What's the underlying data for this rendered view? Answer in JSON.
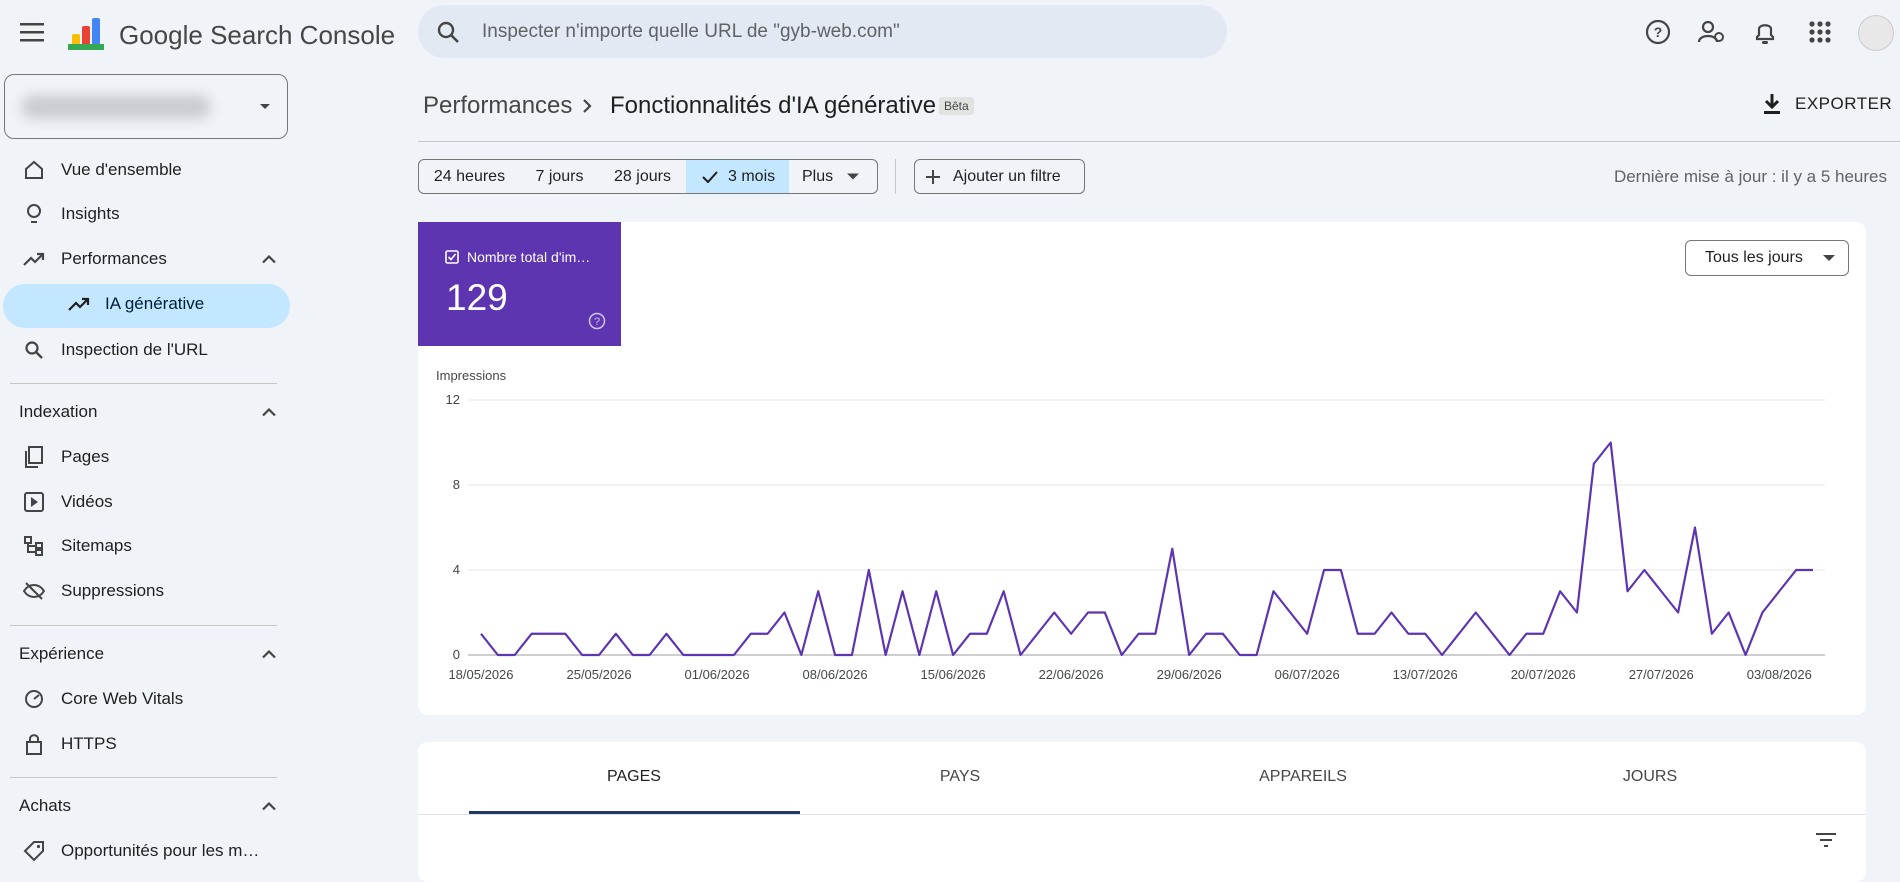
{
  "header": {
    "product": "Google Search Console",
    "search_placeholder": "Inspecter n'importe quelle URL de \"gyb-web.com\""
  },
  "nav": {
    "items": [
      "Vue d'ensemble",
      "Insights",
      "Performances",
      "IA générative",
      "Inspection de l'URL"
    ],
    "sections": [
      {
        "title": "Indexation",
        "items": [
          "Pages",
          "Vidéos",
          "Sitemaps",
          "Suppressions"
        ]
      },
      {
        "title": "Expérience",
        "items": [
          "Core Web Vitals",
          "HTTPS"
        ]
      },
      {
        "title": "Achats",
        "items": [
          "Opportunités pour les m…"
        ]
      }
    ]
  },
  "breadcrumb": {
    "parent": "Performances",
    "current": "Fonctionnalités d'IA générative",
    "badge": "Bêta"
  },
  "export": "EXPORTER",
  "filters": {
    "ranges": [
      "24 heures",
      "7 jours",
      "28 jours",
      "3 mois",
      "Plus"
    ],
    "add_filter": "Ajouter un filtre",
    "last_update": "Dernière mise à jour : il y a 5 heures"
  },
  "metric_card": {
    "label": "Nombre total d'im…",
    "value": 129
  },
  "granularity": "Tous les jours",
  "chart_data": {
    "type": "line",
    "y_label": "Impressions",
    "color": "#5e35b1",
    "grid": true,
    "categories": [
      "18/05/2026",
      null,
      null,
      null,
      null,
      null,
      null,
      "25/05/2026",
      null,
      null,
      null,
      null,
      null,
      null,
      "01/06/2026",
      null,
      null,
      null,
      null,
      null,
      null,
      "08/06/2026",
      null,
      null,
      null,
      null,
      null,
      null,
      "15/06/2026",
      null,
      null,
      null,
      null,
      null,
      null,
      "22/06/2026",
      null,
      null,
      null,
      null,
      null,
      null,
      "29/06/2026",
      null,
      null,
      null,
      null,
      null,
      null,
      "06/07/2026",
      null,
      null,
      null,
      null,
      null,
      null,
      "13/07/2026",
      null,
      null,
      null,
      null,
      null,
      null,
      "20/07/2026",
      null,
      null,
      null,
      null,
      null,
      null,
      "27/07/2026",
      null,
      null,
      null,
      null,
      null,
      null,
      "03/08/2026",
      null,
      null
    ],
    "values": [
      1,
      0,
      0,
      1,
      1,
      1,
      0,
      0,
      1,
      0,
      0,
      1,
      0,
      0,
      0,
      0,
      1,
      1,
      2,
      0,
      3,
      0,
      0,
      4,
      0,
      3,
      0,
      3,
      0,
      1,
      1,
      3,
      0,
      1,
      2,
      1,
      2,
      2,
      0,
      1,
      1,
      5,
      0,
      1,
      1,
      0,
      0,
      3,
      2,
      1,
      4,
      4,
      1,
      1,
      2,
      1,
      1,
      0,
      1,
      2,
      1,
      0,
      1,
      1,
      3,
      2,
      9,
      10,
      3,
      4,
      3,
      2,
      6,
      1,
      2,
      0,
      2,
      3,
      4,
      4
    ],
    "ylim": [
      0,
      12
    ],
    "yticks": [
      0,
      4,
      8,
      12
    ]
  },
  "tabs": [
    "PAGES",
    "PAYS",
    "APPAREILS",
    "JOURS"
  ]
}
